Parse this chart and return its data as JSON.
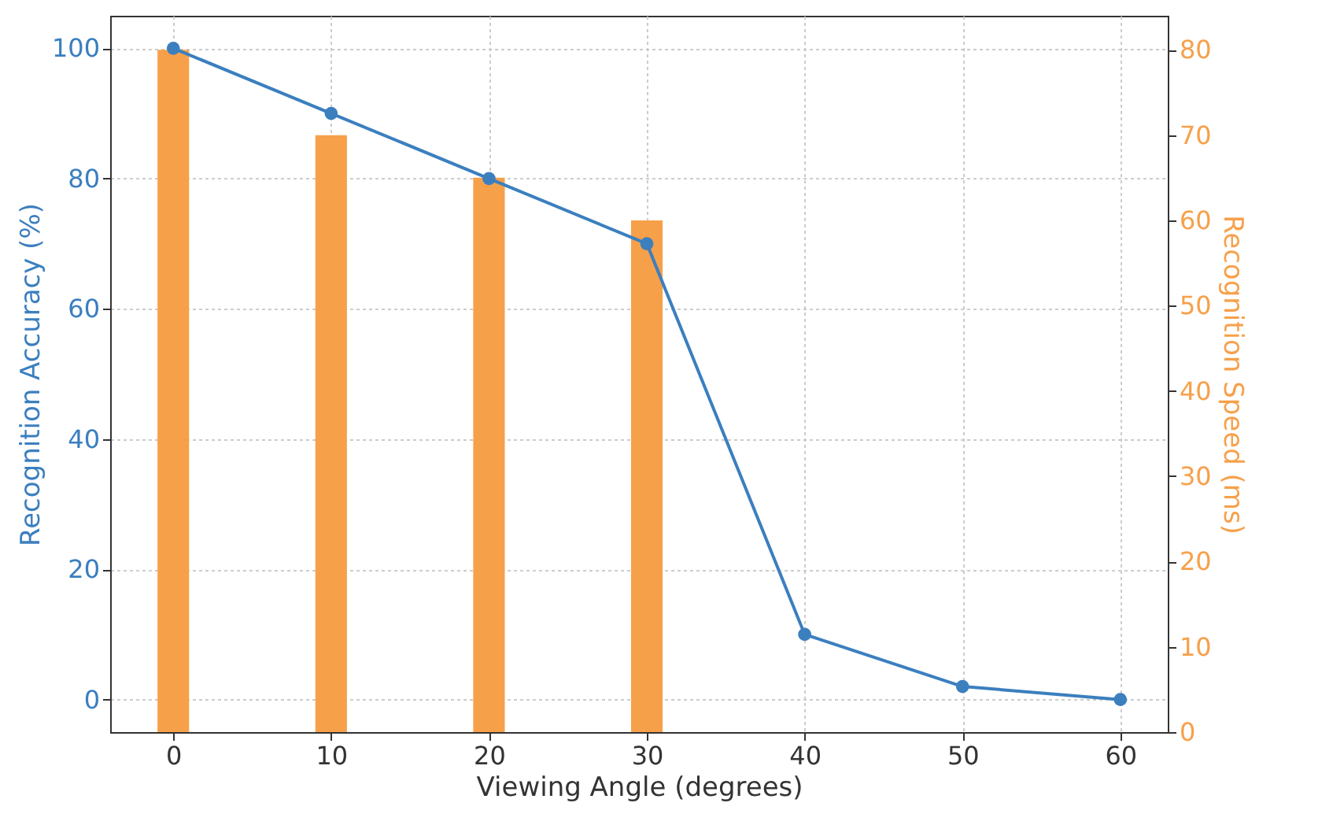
{
  "chart_data": {
    "type": "line",
    "xlabel": "Viewing Angle (degrees)",
    "ylabel": "Recognition Accuracy (%)",
    "y2label": "Recognition Speed (ms)",
    "x": [
      0,
      10,
      20,
      30,
      40,
      50,
      60
    ],
    "series": [
      {
        "type": "bar",
        "axis": "y2",
        "color": "#f7a04a",
        "x": [
          0,
          10,
          20,
          30
        ],
        "values": [
          80,
          70,
          65,
          60
        ]
      },
      {
        "color": "#3b7fbf",
        "values": [
          100,
          90,
          80,
          70,
          10,
          2,
          0
        ]
      }
    ],
    "xlim": [
      -4,
      63
    ],
    "xticks": [
      0,
      10,
      20,
      30,
      40,
      50,
      60
    ],
    "ylim": [
      -5,
      105
    ],
    "yticks": [
      0,
      20,
      40,
      60,
      80,
      100
    ],
    "y2lim": [
      0,
      84
    ],
    "y2ticks": [
      0,
      10,
      20,
      30,
      40,
      50,
      60,
      70,
      80
    ],
    "grid": true,
    "marker": "circle",
    "line_style": "solid"
  }
}
